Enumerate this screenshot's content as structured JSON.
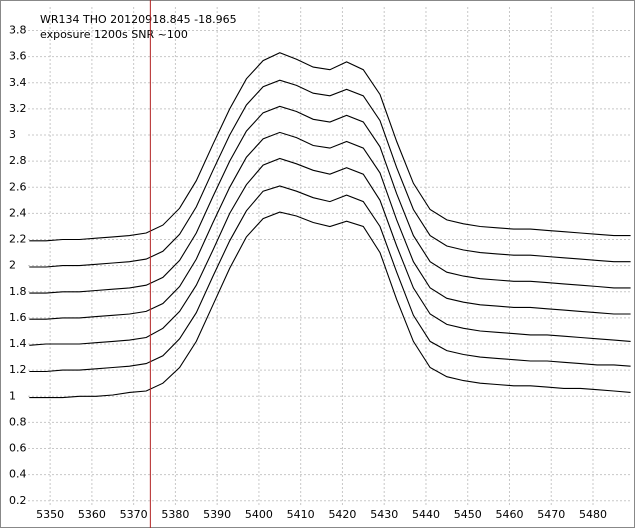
{
  "chart_data": {
    "type": "line",
    "annotations": [
      "WR134  THO   20120918.845 -18.965",
      "exposure 1200s   SNR ~100"
    ],
    "x": [
      5345,
      5349,
      5353,
      5357,
      5361,
      5365,
      5369,
      5373,
      5377,
      5381,
      5385,
      5389,
      5393,
      5397,
      5401,
      5405,
      5409,
      5413,
      5417,
      5421,
      5425,
      5429,
      5433,
      5437,
      5441,
      5445,
      5449,
      5453,
      5457,
      5461,
      5465,
      5469,
      5473,
      5477,
      5481,
      5485,
      5489
    ],
    "series": [
      {
        "color": "#000000",
        "values": [
          0.99,
          0.99,
          0.99,
          1.0,
          1.0,
          1.01,
          1.03,
          1.04,
          1.1,
          1.22,
          1.42,
          1.7,
          1.98,
          2.22,
          2.36,
          2.41,
          2.38,
          2.33,
          2.3,
          2.34,
          2.3,
          2.1,
          1.74,
          1.42,
          1.22,
          1.15,
          1.12,
          1.1,
          1.09,
          1.08,
          1.08,
          1.07,
          1.06,
          1.06,
          1.05,
          1.04,
          1.03
        ]
      },
      {
        "color": "#000000",
        "values": [
          1.19,
          1.19,
          1.2,
          1.2,
          1.21,
          1.22,
          1.23,
          1.25,
          1.31,
          1.44,
          1.64,
          1.92,
          2.19,
          2.42,
          2.57,
          2.61,
          2.57,
          2.52,
          2.49,
          2.54,
          2.49,
          2.3,
          1.95,
          1.62,
          1.42,
          1.35,
          1.32,
          1.3,
          1.29,
          1.28,
          1.27,
          1.27,
          1.26,
          1.25,
          1.24,
          1.24,
          1.23
        ]
      },
      {
        "color": "#000000",
        "values": [
          1.39,
          1.4,
          1.4,
          1.4,
          1.41,
          1.42,
          1.43,
          1.45,
          1.52,
          1.65,
          1.85,
          2.12,
          2.4,
          2.62,
          2.77,
          2.82,
          2.78,
          2.73,
          2.7,
          2.75,
          2.7,
          2.5,
          2.15,
          1.83,
          1.63,
          1.55,
          1.52,
          1.5,
          1.49,
          1.48,
          1.47,
          1.47,
          1.46,
          1.45,
          1.44,
          1.43,
          1.42
        ]
      },
      {
        "color": "#000000",
        "values": [
          1.59,
          1.59,
          1.6,
          1.6,
          1.61,
          1.62,
          1.63,
          1.65,
          1.71,
          1.84,
          2.05,
          2.33,
          2.6,
          2.83,
          2.97,
          3.02,
          2.98,
          2.92,
          2.9,
          2.95,
          2.9,
          2.71,
          2.35,
          2.03,
          1.83,
          1.75,
          1.72,
          1.7,
          1.69,
          1.68,
          1.68,
          1.67,
          1.66,
          1.65,
          1.64,
          1.63,
          1.63
        ]
      },
      {
        "color": "#000000",
        "values": [
          1.79,
          1.79,
          1.8,
          1.8,
          1.81,
          1.82,
          1.83,
          1.85,
          1.91,
          2.04,
          2.25,
          2.53,
          2.8,
          3.03,
          3.17,
          3.22,
          3.18,
          3.12,
          3.1,
          3.15,
          3.1,
          2.91,
          2.55,
          2.23,
          2.03,
          1.95,
          1.92,
          1.9,
          1.89,
          1.88,
          1.88,
          1.87,
          1.86,
          1.85,
          1.84,
          1.83,
          1.83
        ]
      },
      {
        "color": "#000000",
        "values": [
          1.99,
          1.99,
          2.0,
          2.0,
          2.01,
          2.02,
          2.03,
          2.05,
          2.11,
          2.24,
          2.45,
          2.73,
          3.0,
          3.23,
          3.37,
          3.42,
          3.38,
          3.32,
          3.3,
          3.35,
          3.3,
          3.11,
          2.75,
          2.43,
          2.23,
          2.15,
          2.12,
          2.1,
          2.09,
          2.08,
          2.08,
          2.07,
          2.06,
          2.05,
          2.04,
          2.03,
          2.03
        ]
      },
      {
        "color": "#000000",
        "values": [
          2.19,
          2.19,
          2.2,
          2.2,
          2.21,
          2.22,
          2.23,
          2.25,
          2.31,
          2.44,
          2.65,
          2.93,
          3.2,
          3.43,
          3.57,
          3.63,
          3.58,
          3.52,
          3.5,
          3.56,
          3.5,
          3.31,
          2.95,
          2.63,
          2.43,
          2.35,
          2.32,
          2.3,
          2.29,
          2.28,
          2.28,
          2.27,
          2.26,
          2.25,
          2.24,
          2.23,
          2.23
        ]
      }
    ],
    "xlim": [
      5344.7,
      5489.1
    ],
    "ylim": [
      0.16,
      3.98
    ],
    "xticks": [
      5350,
      5360,
      5370,
      5380,
      5390,
      5400,
      5410,
      5420,
      5430,
      5440,
      5450,
      5460,
      5470,
      5480
    ],
    "yticks": [
      0.2,
      0.4,
      0.6,
      0.8,
      1,
      1.2,
      1.4,
      1.6,
      1.8,
      2,
      2.2,
      2.4,
      2.6,
      2.8,
      3,
      3.2,
      3.4,
      3.6,
      3.8
    ],
    "grid": true,
    "grid_color": "#c8c8c8",
    "marker_x": 5374,
    "marker_color": "#b22222"
  }
}
